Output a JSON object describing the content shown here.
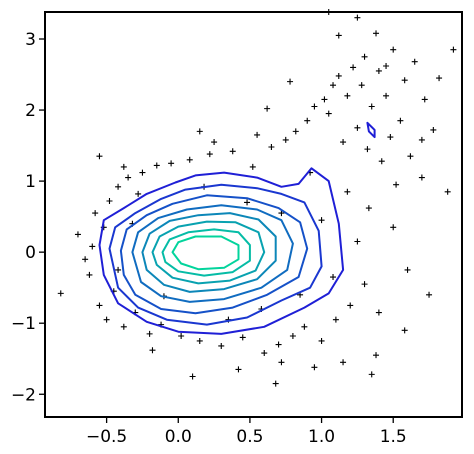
{
  "chart_data": {
    "type": "scatter",
    "title": "",
    "xlabel": "",
    "ylabel": "",
    "xlim": [
      -0.93,
      1.98
    ],
    "ylim": [
      -2.32,
      3.38
    ],
    "x_ticks": [
      {
        "value": -0.5,
        "label": "−0.5"
      },
      {
        "value": 0.0,
        "label": "0.0"
      },
      {
        "value": 0.5,
        "label": "0.5"
      },
      {
        "value": 1.0,
        "label": "1.0"
      },
      {
        "value": 1.5,
        "label": "1.5"
      }
    ],
    "y_ticks": [
      {
        "value": -2,
        "label": "−2"
      },
      {
        "value": -1,
        "label": "−1"
      },
      {
        "value": 0,
        "label": "0"
      },
      {
        "value": 1,
        "label": "1"
      },
      {
        "value": 2,
        "label": "2"
      },
      {
        "value": 3,
        "label": "3"
      }
    ],
    "grid": false,
    "legend": "none",
    "marker": "+",
    "marker_color": "#000000",
    "scatter_points": [
      [
        -0.82,
        -0.58
      ],
      [
        -0.62,
        -0.32
      ],
      [
        -0.6,
        0.08
      ],
      [
        -0.58,
        0.55
      ],
      [
        -0.55,
        -0.75
      ],
      [
        -0.52,
        0.35
      ],
      [
        -0.5,
        -0.95
      ],
      [
        -0.48,
        0.72
      ],
      [
        -0.45,
        -0.55
      ],
      [
        -0.42,
        0.92
      ],
      [
        -0.38,
        -1.05
      ],
      [
        -0.35,
        1.05
      ],
      [
        -0.3,
        -0.85
      ],
      [
        -0.25,
        1.12
      ],
      [
        -0.2,
        -1.15
      ],
      [
        -0.15,
        1.22
      ],
      [
        -0.12,
        -1.02
      ],
      [
        -0.05,
        1.25
      ],
      [
        0.02,
        -1.18
      ],
      [
        0.08,
        1.3
      ],
      [
        0.15,
        -1.25
      ],
      [
        0.22,
        1.38
      ],
      [
        0.3,
        -1.32
      ],
      [
        0.38,
        1.42
      ],
      [
        0.45,
        -1.2
      ],
      [
        0.52,
        1.2
      ],
      [
        0.6,
        -1.42
      ],
      [
        0.65,
        1.48
      ],
      [
        0.7,
        -1.3
      ],
      [
        0.72,
        -1.55
      ],
      [
        0.75,
        1.58
      ],
      [
        0.8,
        -1.18
      ],
      [
        0.82,
        1.7
      ],
      [
        0.88,
        -1.05
      ],
      [
        0.9,
        1.85
      ],
      [
        0.95,
        2.05
      ],
      [
        1.0,
        -1.25
      ],
      [
        1.02,
        2.15
      ],
      [
        1.05,
        1.95
      ],
      [
        1.08,
        2.35
      ],
      [
        1.1,
        -0.95
      ],
      [
        1.12,
        2.48
      ],
      [
        1.15,
        1.55
      ],
      [
        1.18,
        2.2
      ],
      [
        1.2,
        -0.75
      ],
      [
        1.22,
        2.6
      ],
      [
        1.25,
        1.75
      ],
      [
        1.28,
        2.35
      ],
      [
        1.3,
        2.75
      ],
      [
        1.32,
        1.45
      ],
      [
        1.35,
        2.05
      ],
      [
        1.38,
        -1.45
      ],
      [
        1.4,
        2.55
      ],
      [
        1.42,
        1.28
      ],
      [
        1.45,
        2.2
      ],
      [
        1.48,
        1.62
      ],
      [
        1.5,
        2.85
      ],
      [
        1.52,
        0.95
      ],
      [
        1.55,
        1.85
      ],
      [
        1.58,
        2.42
      ],
      [
        1.6,
        -0.25
      ],
      [
        1.62,
        1.35
      ],
      [
        1.65,
        2.68
      ],
      [
        1.7,
        1.05
      ],
      [
        1.72,
        2.15
      ],
      [
        1.75,
        -0.6
      ],
      [
        1.78,
        1.72
      ],
      [
        1.82,
        2.45
      ],
      [
        1.88,
        0.85
      ],
      [
        1.92,
        2.85
      ],
      [
        1.35,
        -1.72
      ],
      [
        0.68,
        -1.85
      ],
      [
        -0.55,
        1.35
      ],
      [
        0.42,
        -1.65
      ],
      [
        -0.38,
        1.2
      ],
      [
        1.15,
        -1.55
      ],
      [
        0.55,
        1.65
      ],
      [
        0.25,
        1.55
      ],
      [
        -0.65,
        -0.1
      ],
      [
        -0.7,
        0.25
      ],
      [
        -0.18,
        -1.38
      ],
      [
        0.1,
        -1.75
      ],
      [
        1.05,
        3.38
      ],
      [
        1.25,
        3.3
      ],
      [
        1.12,
        3.05
      ],
      [
        1.45,
        2.62
      ],
      [
        1.38,
        3.08
      ],
      [
        0.78,
        2.4
      ],
      [
        0.62,
        2.02
      ],
      [
        -0.28,
        0.82
      ],
      [
        -0.1,
        -0.62
      ],
      [
        0.18,
        0.92
      ],
      [
        0.35,
        -0.95
      ],
      [
        0.48,
        0.7
      ],
      [
        0.58,
        -0.8
      ],
      [
        0.72,
        0.55
      ],
      [
        0.85,
        -0.6
      ],
      [
        0.92,
        1.12
      ],
      [
        1.0,
        0.45
      ],
      [
        1.08,
        -0.35
      ],
      [
        1.18,
        0.85
      ],
      [
        1.25,
        0.15
      ],
      [
        1.3,
        -0.45
      ],
      [
        1.33,
        0.62
      ],
      [
        -0.42,
        -0.25
      ],
      [
        -0.32,
        0.4
      ],
      [
        1.4,
        -0.85
      ],
      [
        1.5,
        0.35
      ],
      [
        0.15,
        1.7
      ],
      [
        0.95,
        -1.62
      ],
      [
        1.58,
        -1.1
      ],
      [
        1.7,
        1.58
      ]
    ],
    "contours": [
      {
        "level": 1,
        "color": "#1f1fd6",
        "closed": true,
        "points": [
          [
            -0.55,
            0.1
          ],
          [
            -0.52,
            0.45
          ],
          [
            -0.38,
            0.62
          ],
          [
            -0.22,
            0.82
          ],
          [
            -0.02,
            0.98
          ],
          [
            0.12,
            1.08
          ],
          [
            0.32,
            1.12
          ],
          [
            0.55,
            1.05
          ],
          [
            0.72,
            0.92
          ],
          [
            0.84,
            0.96
          ],
          [
            0.93,
            1.18
          ],
          [
            1.05,
            1.0
          ],
          [
            1.12,
            0.4
          ],
          [
            1.15,
            -0.25
          ],
          [
            1.05,
            -0.58
          ],
          [
            0.88,
            -0.78
          ],
          [
            0.6,
            -1.05
          ],
          [
            0.3,
            -1.15
          ],
          [
            0.0,
            -1.12
          ],
          [
            -0.22,
            -0.98
          ],
          [
            -0.42,
            -0.72
          ],
          [
            -0.52,
            -0.32
          ]
        ]
      },
      {
        "level": 2,
        "color": "#1f1fd6",
        "closed": true,
        "points": [
          [
            1.32,
            1.82
          ],
          [
            1.37,
            1.72
          ],
          [
            1.37,
            1.62
          ],
          [
            1.33,
            1.7
          ]
        ]
      },
      {
        "level": 3,
        "color": "#1a37d0",
        "closed": true,
        "points": [
          [
            -0.48,
            0.05
          ],
          [
            -0.44,
            0.35
          ],
          [
            -0.3,
            0.55
          ],
          [
            -0.12,
            0.75
          ],
          [
            0.05,
            0.88
          ],
          [
            0.3,
            0.95
          ],
          [
            0.55,
            0.9
          ],
          [
            0.72,
            0.82
          ],
          [
            0.88,
            0.7
          ],
          [
            0.98,
            0.3
          ],
          [
            1.0,
            -0.2
          ],
          [
            0.92,
            -0.5
          ],
          [
            0.72,
            -0.68
          ],
          [
            0.48,
            -0.92
          ],
          [
            0.2,
            -1.02
          ],
          [
            -0.08,
            -0.95
          ],
          [
            -0.28,
            -0.78
          ],
          [
            -0.42,
            -0.5
          ]
        ]
      },
      {
        "level": 4,
        "color": "#1551c8",
        "closed": true,
        "points": [
          [
            -0.4,
            0.02
          ],
          [
            -0.36,
            0.32
          ],
          [
            -0.22,
            0.52
          ],
          [
            -0.04,
            0.68
          ],
          [
            0.2,
            0.8
          ],
          [
            0.48,
            0.76
          ],
          [
            0.7,
            0.62
          ],
          [
            0.85,
            0.42
          ],
          [
            0.9,
            0.05
          ],
          [
            0.84,
            -0.35
          ],
          [
            0.62,
            -0.6
          ],
          [
            0.38,
            -0.78
          ],
          [
            0.12,
            -0.86
          ],
          [
            -0.12,
            -0.8
          ],
          [
            -0.3,
            -0.6
          ],
          [
            -0.38,
            -0.32
          ]
        ]
      },
      {
        "level": 5,
        "color": "#106cc0",
        "closed": true,
        "points": [
          [
            -0.32,
            0.0
          ],
          [
            -0.28,
            0.28
          ],
          [
            -0.14,
            0.48
          ],
          [
            0.06,
            0.6
          ],
          [
            0.3,
            0.66
          ],
          [
            0.55,
            0.6
          ],
          [
            0.72,
            0.45
          ],
          [
            0.8,
            0.12
          ],
          [
            0.76,
            -0.25
          ],
          [
            0.58,
            -0.5
          ],
          [
            0.32,
            -0.66
          ],
          [
            0.08,
            -0.7
          ],
          [
            -0.12,
            -0.62
          ],
          [
            -0.26,
            -0.42
          ]
        ]
      },
      {
        "level": 6,
        "color": "#0c87b8",
        "closed": true,
        "points": [
          [
            -0.25,
            0.0
          ],
          [
            -0.2,
            0.26
          ],
          [
            -0.06,
            0.44
          ],
          [
            0.14,
            0.52
          ],
          [
            0.36,
            0.55
          ],
          [
            0.56,
            0.46
          ],
          [
            0.68,
            0.22
          ],
          [
            0.68,
            -0.12
          ],
          [
            0.55,
            -0.38
          ],
          [
            0.32,
            -0.52
          ],
          [
            0.08,
            -0.56
          ],
          [
            -0.1,
            -0.46
          ],
          [
            -0.22,
            -0.25
          ]
        ]
      },
      {
        "level": 7,
        "color": "#08a2b0",
        "closed": true,
        "points": [
          [
            -0.18,
            0.0
          ],
          [
            -0.13,
            0.22
          ],
          [
            0.0,
            0.36
          ],
          [
            0.2,
            0.43
          ],
          [
            0.4,
            0.42
          ],
          [
            0.56,
            0.28
          ],
          [
            0.6,
            0.0
          ],
          [
            0.54,
            -0.26
          ],
          [
            0.36,
            -0.4
          ],
          [
            0.14,
            -0.44
          ],
          [
            -0.04,
            -0.36
          ],
          [
            -0.15,
            -0.18
          ]
        ]
      },
      {
        "level": 8,
        "color": "#05bca6",
        "closed": true,
        "points": [
          [
            -0.11,
            0.0
          ],
          [
            -0.06,
            0.18
          ],
          [
            0.07,
            0.28
          ],
          [
            0.25,
            0.32
          ],
          [
            0.42,
            0.28
          ],
          [
            0.5,
            0.1
          ],
          [
            0.5,
            -0.12
          ],
          [
            0.38,
            -0.28
          ],
          [
            0.18,
            -0.33
          ],
          [
            0.0,
            -0.27
          ],
          [
            -0.09,
            -0.14
          ]
        ]
      },
      {
        "level": 9,
        "color": "#02d49c",
        "closed": true,
        "points": [
          [
            -0.04,
            0.0
          ],
          [
            0.0,
            0.14
          ],
          [
            0.12,
            0.22
          ],
          [
            0.3,
            0.22
          ],
          [
            0.42,
            0.1
          ],
          [
            0.42,
            -0.1
          ],
          [
            0.32,
            -0.22
          ],
          [
            0.14,
            -0.24
          ],
          [
            0.02,
            -0.16
          ]
        ]
      }
    ]
  }
}
